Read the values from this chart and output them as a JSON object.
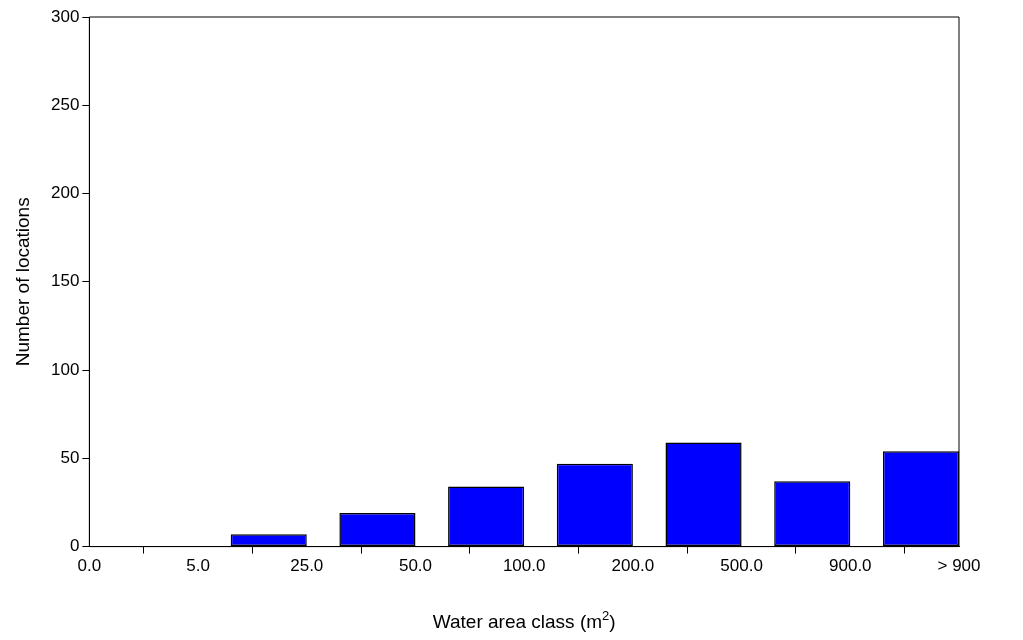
{
  "chart_data": {
    "type": "bar",
    "xlabel": "Water area class (m$^{2}$)",
    "ylabel": "Number of locations",
    "categories": [
      "0.0",
      "5.0",
      "25.0",
      "50.0",
      "100.0",
      "200.0",
      "500.0",
      "900.0",
      "> 900"
    ],
    "values": [
      null,
      0,
      7,
      19,
      34,
      47,
      59,
      37,
      54
    ],
    "color": "#0000ff",
    "ylim": [
      0,
      300
    ],
    "yticks": [
      0,
      50,
      100,
      150,
      200,
      250,
      300
    ],
    "grid": false
  }
}
